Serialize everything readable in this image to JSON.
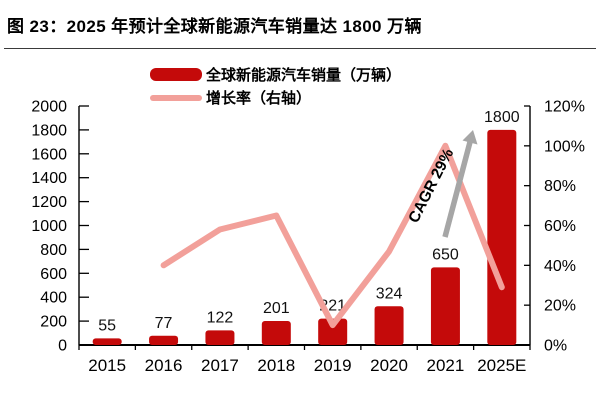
{
  "figure": {
    "title": "图 23：2025 年预计全球新能源汽车销量达 1800 万辆"
  },
  "legend": [
    {
      "label": "全球新能源汽车销量（万辆）",
      "type": "bar",
      "color": "#C40A0A"
    },
    {
      "label": "增长率（右轴）",
      "type": "line",
      "color": "#F2A09A"
    }
  ],
  "chart_data": {
    "type": "bar+line",
    "title": "图 23：2025 年预计全球新能源汽车销量达 1800 万辆",
    "categories": [
      "2015",
      "2016",
      "2017",
      "2018",
      "2019",
      "2020",
      "2021",
      "2025E"
    ],
    "series": [
      {
        "name": "全球新能源汽车销量（万辆）",
        "type": "bar",
        "axis": "left",
        "color": "#C40A0A",
        "values": [
          55,
          77,
          122,
          201,
          221,
          324,
          650,
          1800
        ],
        "data_labels": true
      },
      {
        "name": "增长率（右轴）",
        "type": "line",
        "axis": "right",
        "color": "#F2A09A",
        "values_pct": [
          null,
          40,
          58,
          65,
          10,
          47,
          100,
          29
        ]
      }
    ],
    "left_axis": {
      "min": 0,
      "max": 2000,
      "step": 200,
      "tick_labels": [
        "0",
        "200",
        "400",
        "600",
        "800",
        "1000",
        "1200",
        "1400",
        "1600",
        "1800",
        "2000"
      ]
    },
    "right_axis": {
      "min": 0,
      "max": 120,
      "step": 20,
      "format": "percent",
      "tick_labels": [
        "0%",
        "20%",
        "40%",
        "60%",
        "80%",
        "100%",
        "120%"
      ]
    },
    "annotation": {
      "text": "CAGR 29%",
      "arrow_color": "#A6A6A6"
    },
    "grid": false,
    "legend_position": "top",
    "colors": {
      "bar": "#C40A0A",
      "line": "#F2A09A",
      "arrow": "#A6A6A6",
      "axis": "#000000",
      "label": "#111111"
    }
  }
}
